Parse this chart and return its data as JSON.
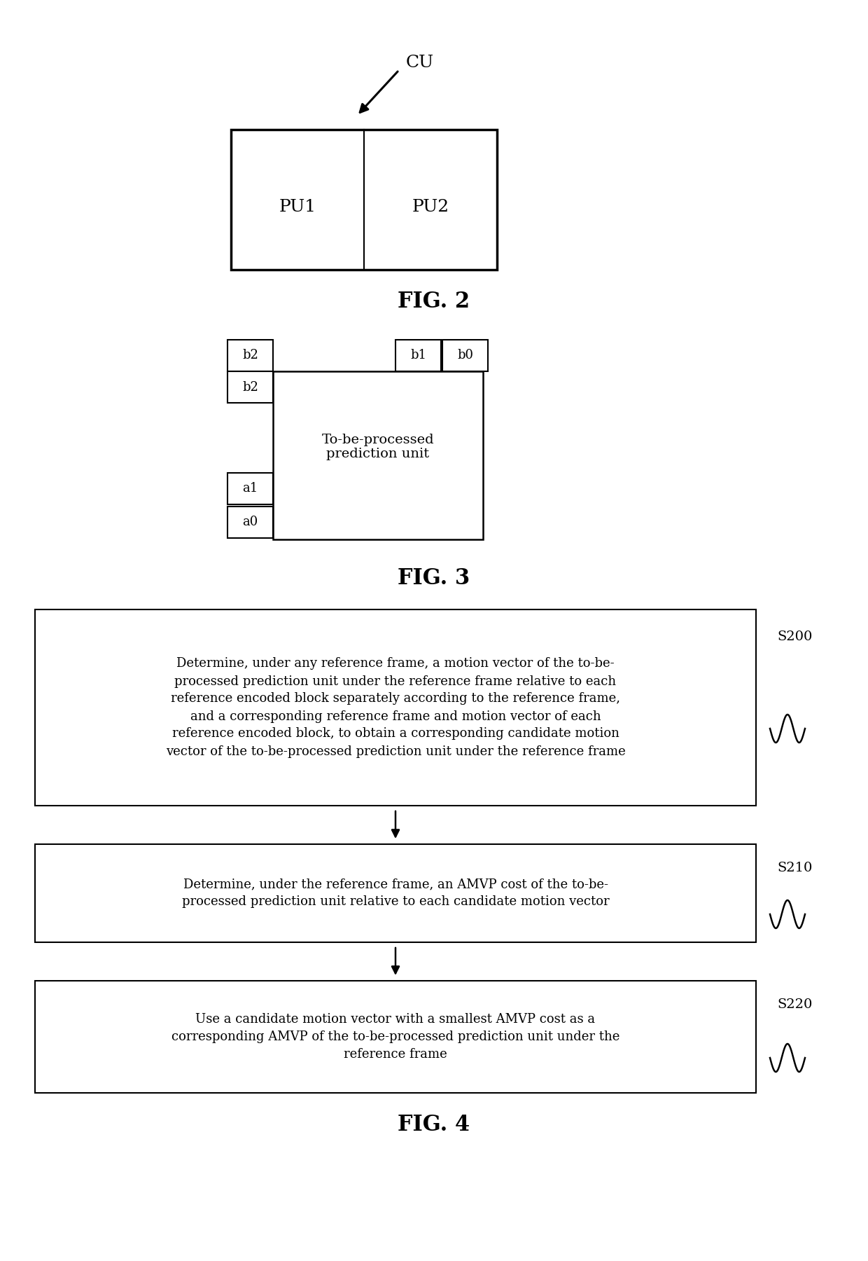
{
  "bg_color": "#ffffff",
  "fig2": {
    "title": "FIG. 2",
    "cu_label": "CU",
    "pu1_label": "PU1",
    "pu2_label": "PU2"
  },
  "fig3": {
    "title": "FIG. 3",
    "center_text": "To-be-processed\nprediction unit",
    "b2_label": "b2",
    "b1_label": "b1",
    "b0_label": "b0",
    "a1_label": "a1",
    "a0_label": "a0"
  },
  "fig4": {
    "title": "FIG. 4",
    "box1_text": "Determine, under any reference frame, a motion vector of the to-be-\nprocessed prediction unit under the reference frame relative to each\nreference encoded block separately according to the reference frame,\nand a corresponding reference frame and motion vector of each\nreference encoded block, to obtain a corresponding candidate motion\nvector of the to-be-processed prediction unit under the reference frame",
    "box2_text": "Determine, under the reference frame, an AMVP cost of the to-be-\nprocessed prediction unit relative to each candidate motion vector",
    "box3_text": "Use a candidate motion vector with a smallest AMVP cost as a\ncorresponding AMVP of the to-be-processed prediction unit under the\nreference frame",
    "s200": "S200",
    "s210": "S210",
    "s220": "S220"
  }
}
